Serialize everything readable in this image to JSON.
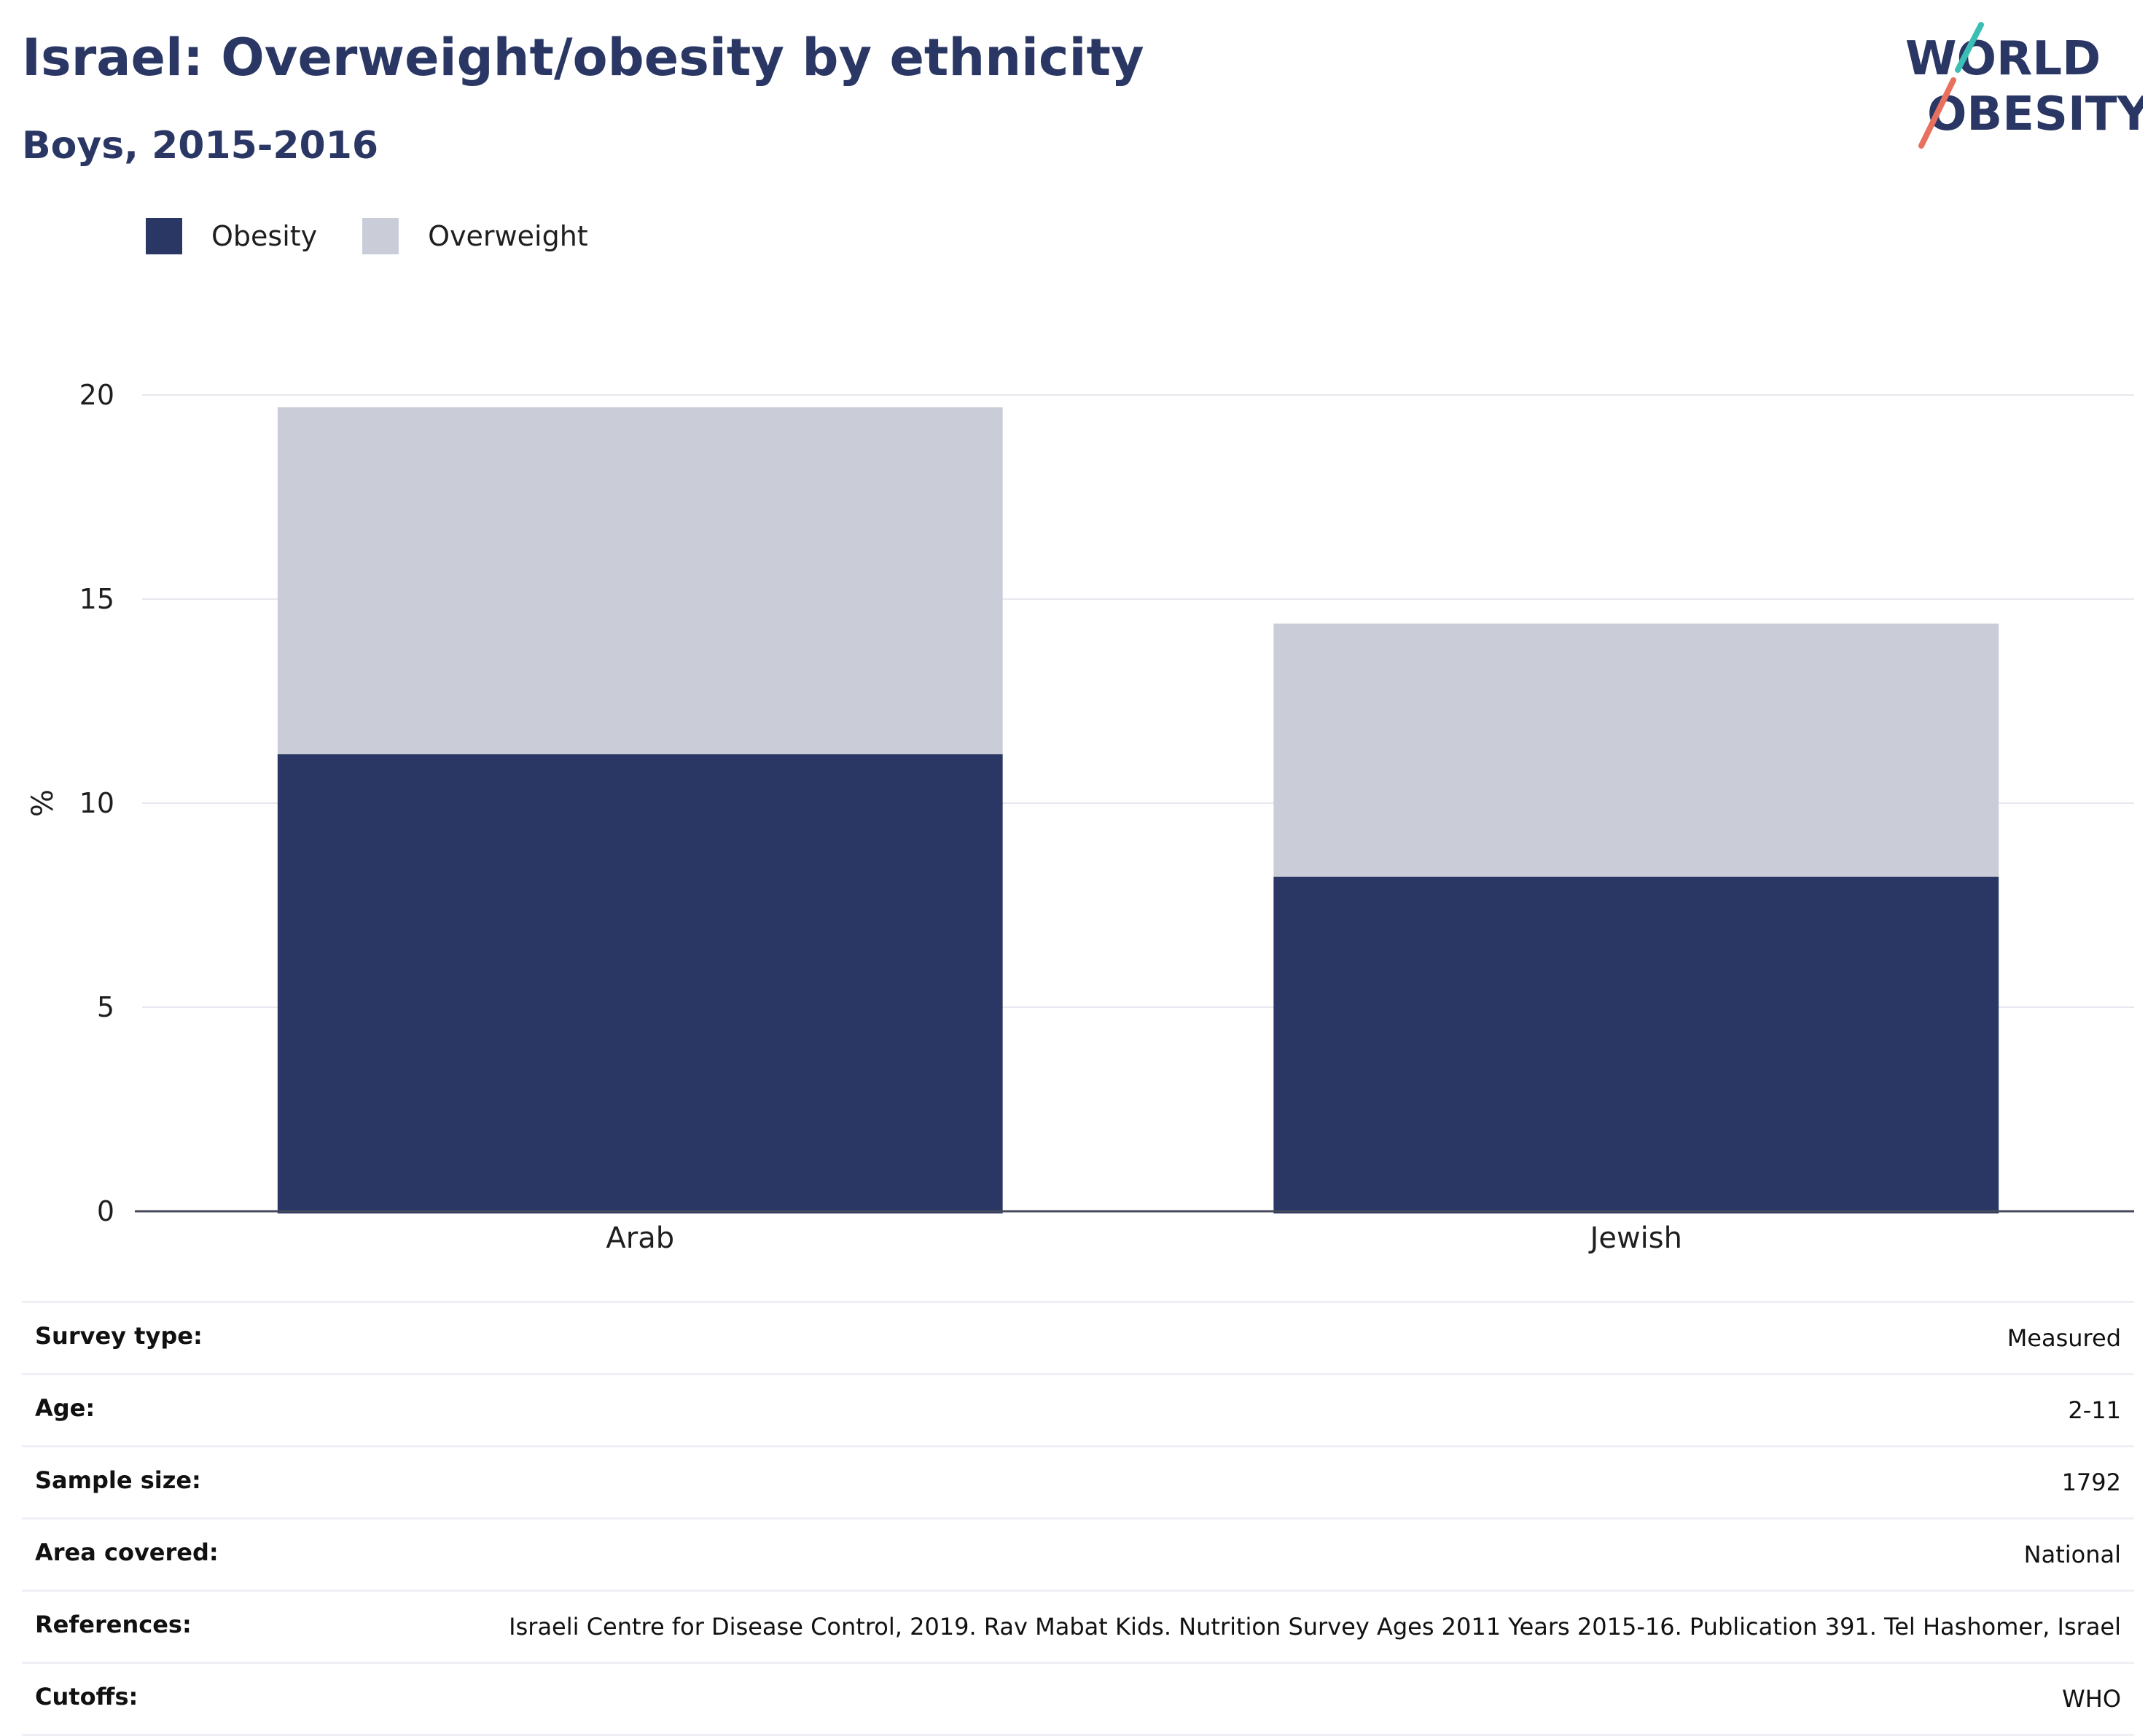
{
  "header": {
    "title": "Israel: Overweight/obesity by ethnicity",
    "subtitle": "Boys, 2015-2016"
  },
  "logo": {
    "line1": "WORLD",
    "line2": "OBESITY",
    "colors": {
      "text": "#2a3764",
      "slash_top": "#3bbfb4",
      "slash_bottom": "#e8705e"
    }
  },
  "legend": {
    "items": [
      {
        "label": "Obesity",
        "color": "#2a3764"
      },
      {
        "label": "Overweight",
        "color": "#cacdd8"
      }
    ]
  },
  "chart_data": {
    "type": "bar",
    "stacked": true,
    "categories": [
      "Arab",
      "Jewish"
    ],
    "series": [
      {
        "name": "Obesity",
        "color": "#2a3764",
        "values": [
          11.2,
          8.2
        ]
      },
      {
        "name": "Overweight",
        "color": "#cacdd8",
        "values": [
          8.5,
          6.2
        ]
      }
    ],
    "ylabel": "%",
    "xlabel": "",
    "ylim": [
      0,
      20
    ],
    "yticks": [
      0,
      5,
      10,
      15,
      20
    ],
    "grid": true,
    "legend_position": "top-left"
  },
  "info": {
    "rows": [
      {
        "label": "Survey type:",
        "value": "Measured"
      },
      {
        "label": "Age:",
        "value": "2-11"
      },
      {
        "label": "Sample size:",
        "value": "1792"
      },
      {
        "label": "Area covered:",
        "value": "National"
      },
      {
        "label": "References:",
        "value": "Israeli Centre for Disease Control, 2019. Rav Mabat Kids. Nutrition Survey Ages 2011 Years 2015-16. Publication 391. Tel Hashomer, Israel"
      },
      {
        "label": "Cutoffs:",
        "value": "WHO"
      }
    ]
  }
}
